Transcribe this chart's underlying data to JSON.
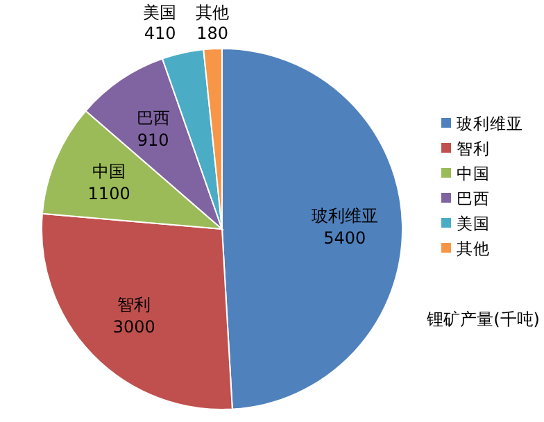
{
  "chart_data": {
    "type": "pie",
    "title": "锂矿产量(千吨)",
    "categories": [
      "玻利维亚",
      "智利",
      "中国",
      "巴西",
      "美国",
      "其他"
    ],
    "values": [
      5400,
      3000,
      1100,
      910,
      410,
      180
    ],
    "colors": [
      "#4f81bd",
      "#c0504d",
      "#9bbb59",
      "#8064a2",
      "#4bacc6",
      "#f79646"
    ],
    "data_labels": true,
    "legend": "right"
  }
}
